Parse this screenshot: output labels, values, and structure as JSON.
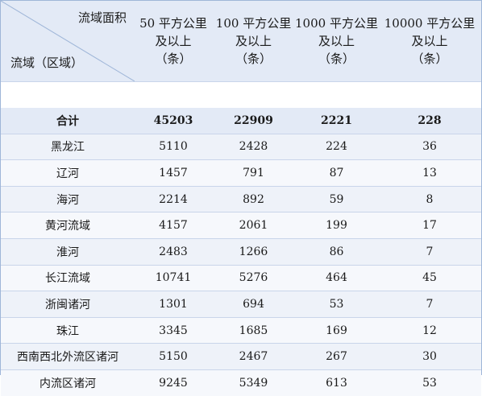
{
  "table": {
    "corner_top": "流域面积",
    "corner_bottom": "流域（区域）",
    "columns": [
      {
        "line1": "50 平方公里",
        "line2": "及以上",
        "line3": "（条）"
      },
      {
        "line1": "100 平方公里",
        "line2": "及以上",
        "line3": "（条）"
      },
      {
        "line1": "1000 平方公里",
        "line2": "及以上",
        "line3": "（条）"
      },
      {
        "line1": "10000 平方公里",
        "line2": "及以上",
        "line3": "（条）"
      }
    ],
    "total": {
      "region": "合计",
      "v": [
        "45203",
        "22909",
        "2221",
        "228"
      ]
    },
    "rows": [
      {
        "region": "黑龙江",
        "v": [
          "5110",
          "2428",
          "224",
          "36"
        ]
      },
      {
        "region": "辽河",
        "v": [
          "1457",
          "791",
          "87",
          "13"
        ]
      },
      {
        "region": "海河",
        "v": [
          "2214",
          "892",
          "59",
          "8"
        ]
      },
      {
        "region": "黄河流域",
        "v": [
          "4157",
          "2061",
          "199",
          "17"
        ]
      },
      {
        "region": "淮河",
        "v": [
          "2483",
          "1266",
          "86",
          "7"
        ]
      },
      {
        "region": "长江流域",
        "v": [
          "10741",
          "5276",
          "464",
          "45"
        ]
      },
      {
        "region": "浙闽诸河",
        "v": [
          "1301",
          "694",
          "53",
          "7"
        ]
      },
      {
        "region": "珠江",
        "v": [
          "3345",
          "1685",
          "169",
          "12"
        ]
      },
      {
        "region": "西南西北外流区诸河",
        "v": [
          "5150",
          "2467",
          "267",
          "30"
        ]
      },
      {
        "region": "内流区诸河",
        "v": [
          "9245",
          "5349",
          "613",
          "53"
        ]
      }
    ]
  }
}
